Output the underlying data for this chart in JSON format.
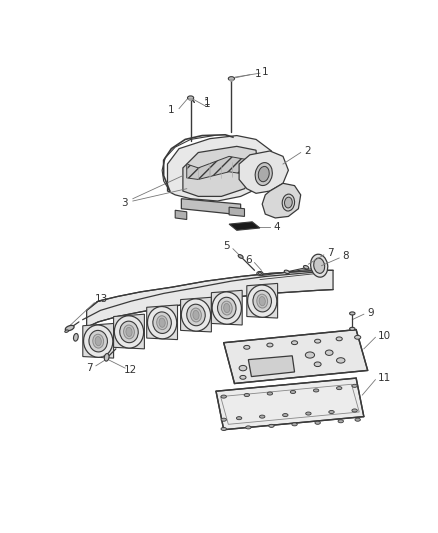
{
  "background_color": "#ffffff",
  "label_color": "#333333",
  "line_color": "#3a3a3a",
  "part_fill": "#f0f0f0",
  "part_fill2": "#e0e0e0",
  "hatch_fill": "#d8d8d8",
  "figsize": [
    4.38,
    5.33
  ],
  "dpi": 100,
  "label_fontsize": 7.5
}
